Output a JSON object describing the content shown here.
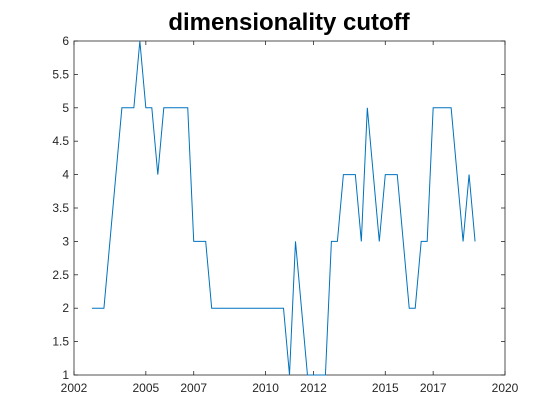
{
  "chart_data": {
    "type": "line",
    "title": "dimensionality cutoff",
    "xlabel": "",
    "ylabel": "",
    "xlim": [
      2002,
      2020
    ],
    "ylim": [
      1,
      6
    ],
    "xticks": [
      2002,
      2005,
      2007,
      2010,
      2012,
      2015,
      2017,
      2020
    ],
    "yticks": [
      1,
      1.5,
      2,
      2.5,
      3,
      3.5,
      4,
      4.5,
      5,
      5.5,
      6
    ],
    "grid": false,
    "box": true,
    "line_color": "#0072BD",
    "series": [
      {
        "x": [
          2002.75,
          2003.0,
          2003.25,
          2003.5,
          2003.75,
          2004.0,
          2004.25,
          2004.5,
          2004.75,
          2005.0,
          2005.25,
          2005.5,
          2005.75,
          2006.0,
          2006.25,
          2006.5,
          2006.75,
          2007.0,
          2007.25,
          2007.5,
          2007.75,
          2008.0,
          2008.25,
          2008.5,
          2008.75,
          2009.0,
          2009.25,
          2009.5,
          2009.75,
          2010.0,
          2010.25,
          2010.5,
          2010.75,
          2011.0,
          2011.25,
          2011.5,
          2011.75,
          2012.0,
          2012.25,
          2012.5,
          2012.75,
          2013.0,
          2013.25,
          2013.5,
          2013.75,
          2014.0,
          2014.25,
          2014.5,
          2014.75,
          2015.0,
          2015.25,
          2015.5,
          2015.75,
          2016.0,
          2016.25,
          2016.5,
          2016.75,
          2017.0,
          2017.25,
          2017.5,
          2017.75,
          2018.0,
          2018.25,
          2018.5,
          2018.75
        ],
        "y": [
          2,
          2,
          2,
          3,
          4,
          5,
          5,
          5,
          6,
          5,
          5,
          4,
          5,
          5,
          5,
          5,
          5,
          3,
          3,
          3,
          2,
          2,
          2,
          2,
          2,
          2,
          2,
          2,
          2,
          2,
          2,
          2,
          2,
          1,
          3,
          2,
          1,
          1,
          1,
          1,
          3,
          3,
          4,
          4,
          4,
          3,
          5,
          4,
          3,
          4,
          4,
          4,
          3,
          2,
          2,
          3,
          3,
          5,
          5,
          5,
          5,
          4,
          3,
          4,
          3
        ]
      }
    ]
  }
}
